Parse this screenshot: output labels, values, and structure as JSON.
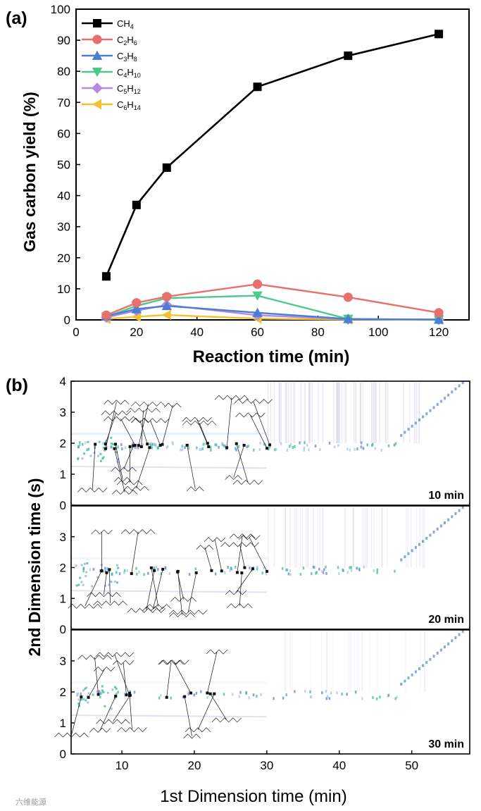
{
  "panel_a": {
    "label": "(a)",
    "chart_data": {
      "type": "line",
      "xlabel": "Reaction time (min)",
      "ylabel": "Gas carbon yield (%)",
      "xlim": [
        0,
        130
      ],
      "ylim": [
        0,
        100
      ],
      "xticks": [
        0,
        20,
        40,
        60,
        80,
        100,
        120
      ],
      "yticks": [
        0,
        10,
        20,
        30,
        40,
        50,
        60,
        70,
        80,
        90,
        100
      ],
      "legend_position": "top-left",
      "series": [
        {
          "name": "CH4",
          "base": "CH",
          "sub": "4",
          "marker": "square",
          "color": "#000000",
          "x": [
            10,
            20,
            30,
            60,
            90,
            120
          ],
          "y": [
            14,
            37,
            49,
            75,
            85,
            92
          ]
        },
        {
          "name": "C2H6",
          "base": "C2H6",
          "sub": "",
          "marker": "circle",
          "color": "#e8706c",
          "x": [
            10,
            20,
            30,
            60,
            90,
            120
          ],
          "y": [
            1.5,
            5.5,
            7.5,
            11.5,
            7.3,
            2.3
          ]
        },
        {
          "name": "C3H8",
          "base": "C3H8",
          "sub": "",
          "marker": "triangle-up",
          "color": "#4a7fd4",
          "x": [
            10,
            20,
            30,
            60,
            90,
            120
          ],
          "y": [
            1.2,
            3.5,
            4.5,
            2.3,
            0.3,
            0.1
          ]
        },
        {
          "name": "C4H10",
          "base": "C4H10",
          "sub": "",
          "marker": "triangle-down",
          "color": "#4fc98a",
          "x": [
            10,
            20,
            30,
            60,
            90,
            120
          ],
          "y": [
            1.0,
            4.5,
            7.0,
            7.8,
            0.3,
            0.1
          ]
        },
        {
          "name": "C5H12",
          "base": "C5H12",
          "sub": "",
          "marker": "diamond",
          "color": "#b58be0",
          "x": [
            10,
            20,
            30,
            60,
            90,
            120
          ],
          "y": [
            0.8,
            3.0,
            4.8,
            1.5,
            0.2,
            0.1
          ]
        },
        {
          "name": "C6H14",
          "base": "C6H14",
          "sub": "",
          "marker": "triangle-left",
          "color": "#f2c12e",
          "x": [
            10,
            20,
            30,
            60,
            90,
            120
          ],
          "y": [
            0.3,
            1.0,
            1.6,
            0.4,
            0.1,
            0.0
          ]
        }
      ]
    }
  },
  "panel_b": {
    "label": "(b)",
    "chart_data": {
      "type": "heatmap",
      "xlabel": "1st Dimension time (min)",
      "ylabel": "2nd Dimension time (s)",
      "xlim": [
        3,
        58
      ],
      "ylim": [
        0,
        4
      ],
      "xticks": [
        10,
        20,
        30,
        40,
        50
      ],
      "yticks": [
        0,
        1,
        2,
        3,
        4
      ],
      "subplots": [
        {
          "label": "10 min",
          "intensity": 1.0
        },
        {
          "label": "20 min",
          "intensity": 0.7
        },
        {
          "label": "30 min",
          "intensity": 0.45
        }
      ]
    }
  },
  "watermark": "六维能源"
}
